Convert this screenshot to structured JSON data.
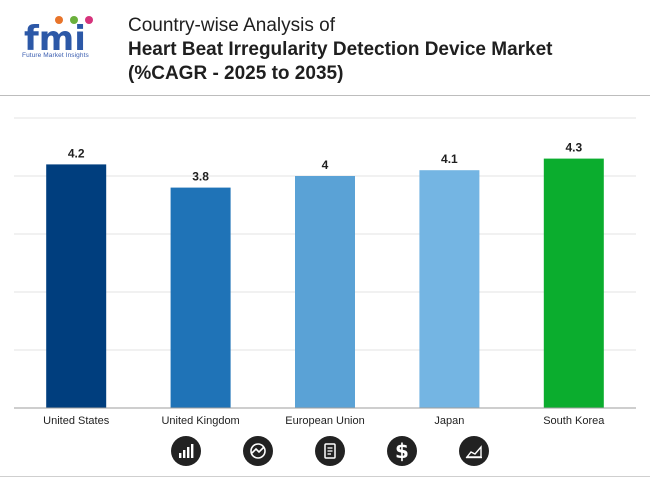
{
  "header": {
    "logo_text": "fmi",
    "logo_tagline": "Future Market Insights",
    "title_line1": "Country-wise Analysis of",
    "title_line2": "Heart Beat Irregularity Detection Device Market",
    "title_line3": "(%CAGR - 2025 to 2035)"
  },
  "chart_data": {
    "type": "bar",
    "title": "Country-wise Analysis of Heart Beat Irregularity Detection Device Market (%CAGR - 2025 to 2035)",
    "categories": [
      "United States",
      "United Kingdom",
      "European Union",
      "Japan",
      "South Korea"
    ],
    "values": [
      4.2,
      3.8,
      4,
      4.1,
      4.3
    ],
    "labels": [
      "4.2",
      "3.8",
      "4",
      "4.1",
      "4.3"
    ],
    "colors": [
      "#003e7e",
      "#1f73b7",
      "#5aa2d6",
      "#74b5e3",
      "#0bad2e"
    ],
    "xlabel": "",
    "ylabel": "",
    "ylim": [
      0,
      5
    ],
    "grid": true
  },
  "footer_icons": [
    "bar-growth-icon",
    "chart-cycle-icon",
    "document-icon",
    "dollar-icon",
    "area-chart-icon"
  ],
  "colors": {
    "gridline": "#e3e3e3",
    "axis": "#9e9e9e",
    "label_text": "#1f1f1f"
  }
}
